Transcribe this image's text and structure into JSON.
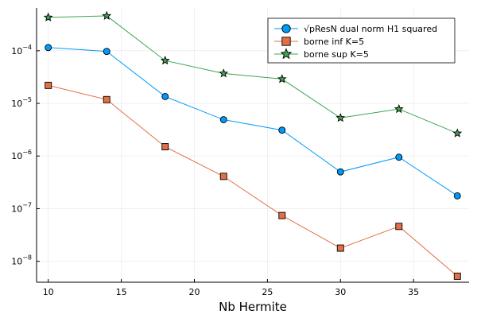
{
  "chart_data": {
    "type": "line",
    "title": "",
    "xlabel": "Nb Hermite",
    "ylabel": "",
    "yscale": "log",
    "xlim": [
      9.2,
      38.8
    ],
    "ylim": [
      4e-09,
      0.00065
    ],
    "grid": true,
    "legend_position": "top-right",
    "x": [
      10,
      14,
      18,
      22,
      26,
      30,
      34,
      38
    ],
    "x_ticks": [
      10,
      15,
      20,
      25,
      30,
      35
    ],
    "x_tick_labels": [
      "10",
      "15",
      "20",
      "25",
      "30",
      "35"
    ],
    "y_ticks": [
      1e-08,
      1e-07,
      1e-06,
      1e-05,
      0.0001
    ],
    "y_tick_labels": [
      {
        "base": "10",
        "exp": "−8"
      },
      {
        "base": "10",
        "exp": "−7"
      },
      {
        "base": "10",
        "exp": "−6"
      },
      {
        "base": "10",
        "exp": "−5"
      },
      {
        "base": "10",
        "exp": "−4"
      }
    ],
    "series": [
      {
        "name": "√pResN dual norm H1 squared",
        "color": "#009af9",
        "marker": "circle",
        "values": [
          0.000115,
          9.7e-05,
          1.35e-05,
          4.9e-06,
          3.1e-06,
          5e-07,
          9.5e-07,
          1.75e-07
        ]
      },
      {
        "name": "borne inf K=5",
        "color": "#e26f46",
        "marker": "square",
        "values": [
          2.2e-05,
          1.18e-05,
          1.5e-06,
          4.1e-07,
          7.4e-08,
          1.78e-08,
          4.6e-08,
          5.2e-09
        ]
      },
      {
        "name": "borne sup K=5",
        "color": "#3ea44e",
        "marker": "star",
        "values": [
          0.00043,
          0.00046,
          6.5e-05,
          3.7e-05,
          2.9e-05,
          5.3e-06,
          7.8e-06,
          2.7e-06
        ]
      }
    ]
  }
}
